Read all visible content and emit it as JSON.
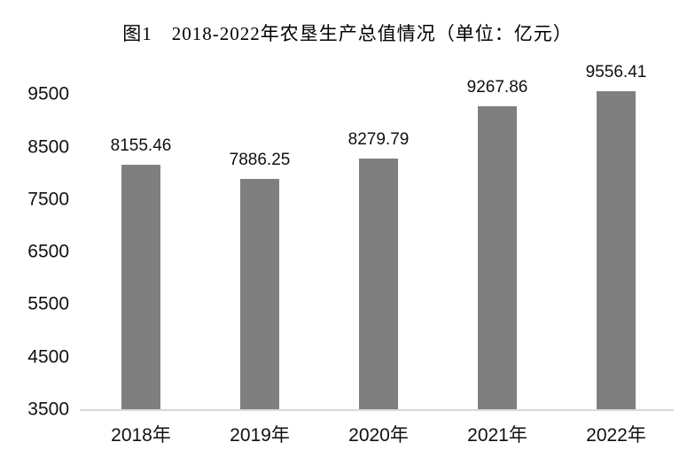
{
  "figure_label": "图1",
  "chart_data": {
    "type": "bar",
    "title": "图1　2018-2022年农垦生产总值情况（单位：亿元）",
    "categories": [
      "2018年",
      "2019年",
      "2020年",
      "2021年",
      "2022年"
    ],
    "values": [
      8155.46,
      7886.25,
      8279.79,
      9267.86,
      9556.41
    ],
    "data_labels": [
      "8155.46",
      "7886.25",
      "8279.79",
      "9267.86",
      "9556.41"
    ],
    "unit": "亿元",
    "xlabel": "",
    "ylabel": "",
    "yticks": [
      3500,
      4500,
      5500,
      6500,
      7500,
      8500,
      9500
    ],
    "ylim": [
      3500,
      9700
    ],
    "grid": false,
    "legend": false,
    "bar_color": "#7f7f7f",
    "axis_line_color": "#d9d9d9",
    "text_color": "#101010",
    "background_color": "#ffffff"
  }
}
